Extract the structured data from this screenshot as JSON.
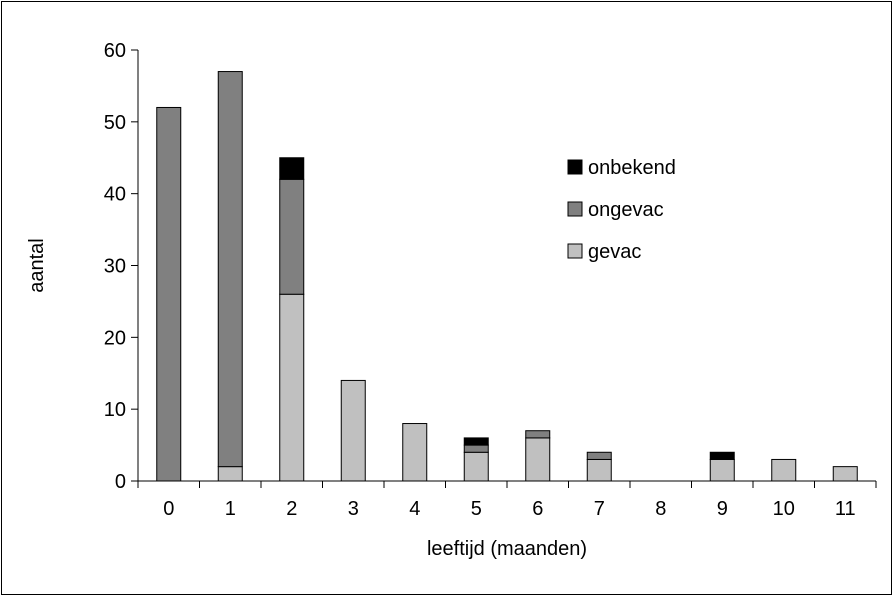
{
  "chart_data": {
    "type": "bar",
    "stacked": true,
    "title": "",
    "xlabel": "leeftijd (maanden)",
    "ylabel": "aantal",
    "ylim": [
      0,
      60
    ],
    "yticks": [
      0,
      10,
      20,
      30,
      40,
      50,
      60
    ],
    "categories": [
      "0",
      "1",
      "2",
      "3",
      "4",
      "5",
      "6",
      "7",
      "8",
      "9",
      "10",
      "11"
    ],
    "series": [
      {
        "name": "gevac",
        "color": "#c0c0c0",
        "values": [
          0,
          2,
          26,
          14,
          8,
          4,
          6,
          3,
          0,
          3,
          3,
          2
        ]
      },
      {
        "name": "ongevac",
        "color": "#808080",
        "values": [
          52,
          55,
          16,
          0,
          0,
          1,
          1,
          1,
          0,
          0,
          0,
          0
        ]
      },
      {
        "name": "onbekend",
        "color": "#000000",
        "values": [
          0,
          0,
          3,
          0,
          0,
          1,
          0,
          0,
          0,
          1,
          0,
          0
        ]
      }
    ],
    "legend": {
      "position": "right",
      "order": [
        "onbekend",
        "ongevac",
        "gevac"
      ]
    },
    "grid": false
  }
}
